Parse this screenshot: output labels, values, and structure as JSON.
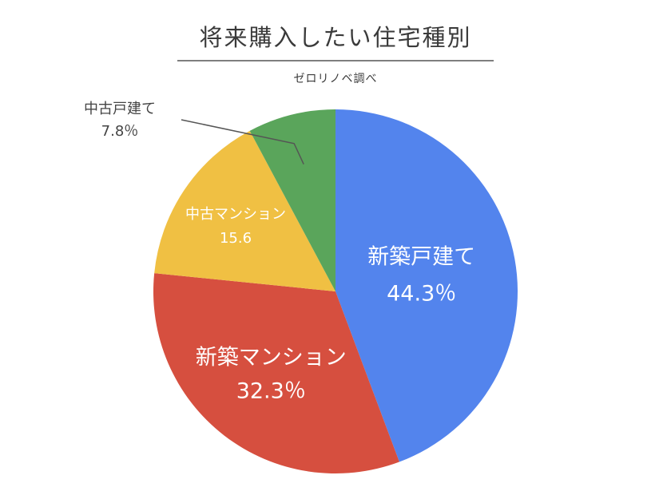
{
  "chart_data": {
    "type": "pie",
    "title": "将来購入したい住宅種別",
    "subtitle": "ゼロリノベ調べ",
    "slices": [
      {
        "name": "新築戸建て",
        "value": 44.3,
        "label": "44.3％",
        "color": "#5384ed"
      },
      {
        "name": "新築マンション",
        "value": 32.3,
        "label": "32.3％",
        "color": "#d64f3f"
      },
      {
        "name": "中古マンション",
        "value": 15.6,
        "label": "15.6",
        "color": "#f0c043"
      },
      {
        "name": "中古戸建て",
        "value": 7.8,
        "label": "7.8％",
        "color": "#5aa55b"
      }
    ],
    "legend": "none"
  }
}
